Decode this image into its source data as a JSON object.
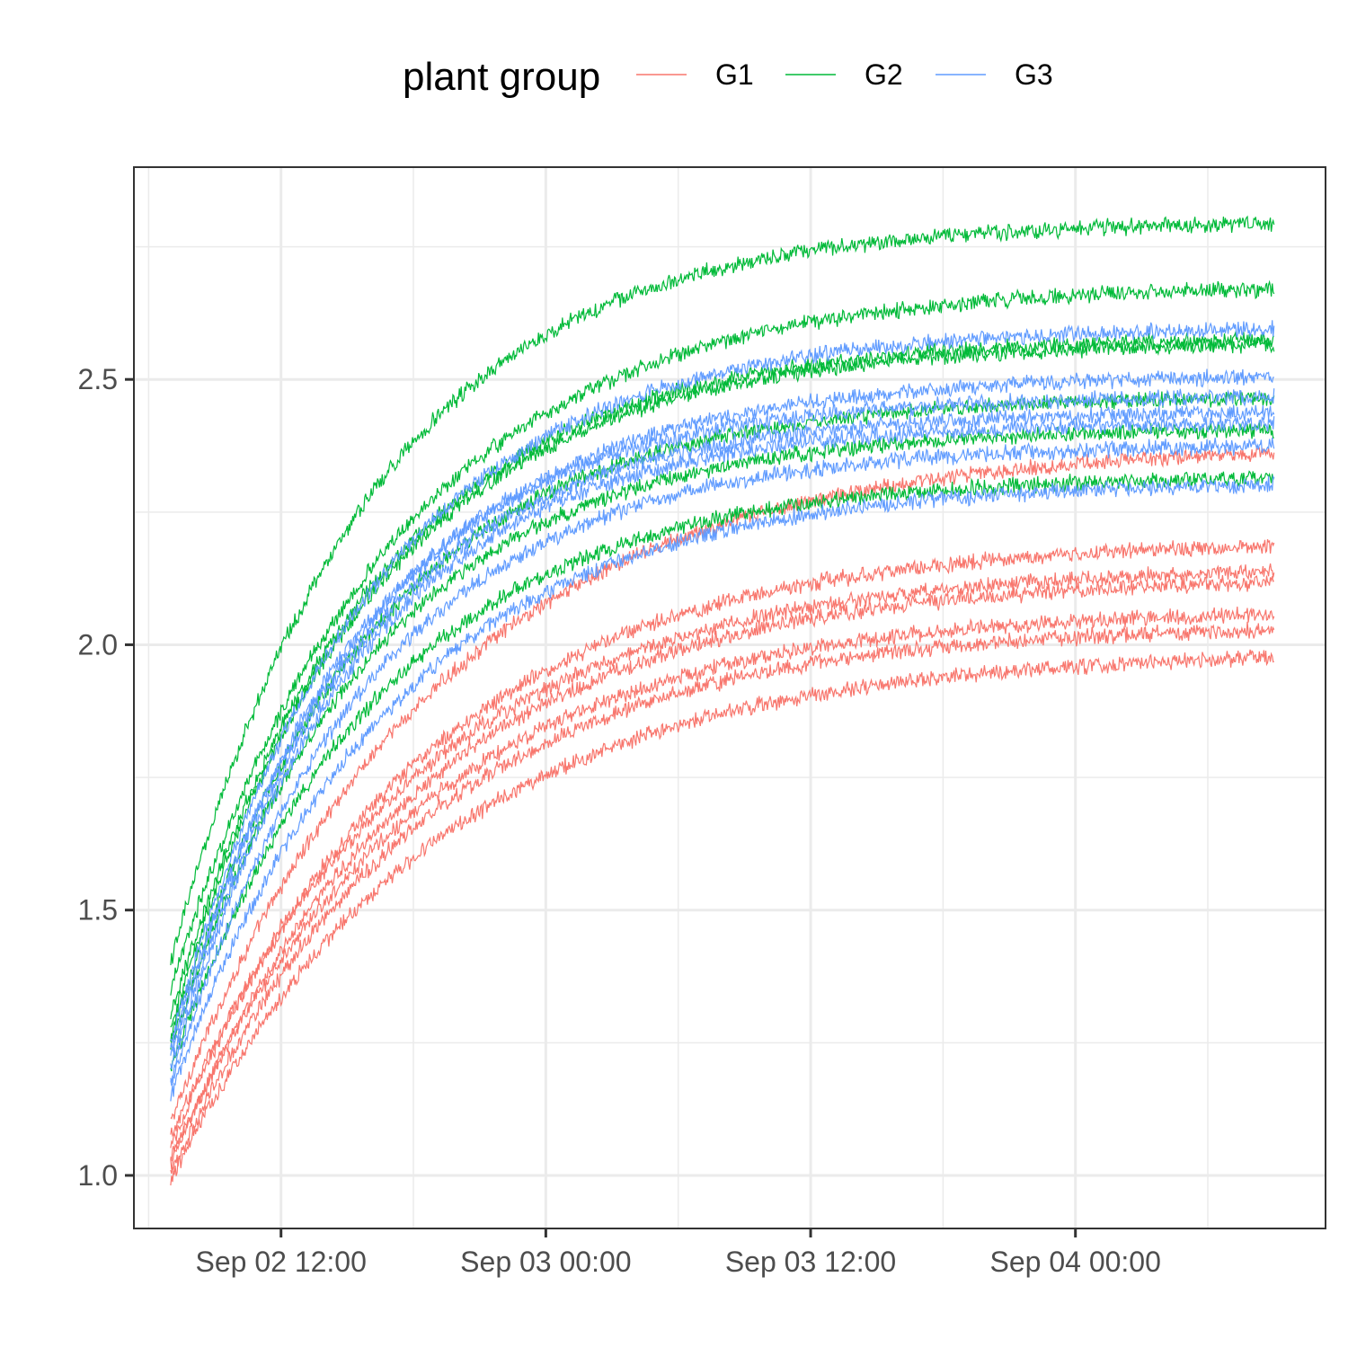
{
  "chart_data": {
    "type": "line",
    "title": "",
    "xlabel": "",
    "ylabel": "",
    "x_range": [
      "2023-09-02 07:00",
      "2023-09-04 09:00"
    ],
    "xlim": [
      "2023-09-02 05:20",
      "2023-09-04 11:20"
    ],
    "ylim": [
      0.9,
      2.9
    ],
    "x_ticks": [
      "Sep 02 12:00",
      "Sep 03 00:00",
      "Sep 03 12:00",
      "Sep 04 00:00"
    ],
    "x_tick_values": [
      "2023-09-02 12:00",
      "2023-09-03 00:00",
      "2023-09-03 12:00",
      "2023-09-04 00:00"
    ],
    "y_ticks": [
      "1.0",
      "1.5",
      "2.0",
      "2.5"
    ],
    "y_tick_values": [
      1.0,
      1.5,
      2.0,
      2.5
    ],
    "grid": true,
    "legend": {
      "title": "plant group",
      "position": "top",
      "entries": [
        {
          "label": "G1",
          "color": "#F8766D"
        },
        {
          "label": "G2",
          "color": "#00BA38"
        },
        {
          "label": "G3",
          "color": "#619CFF"
        }
      ]
    },
    "noise_amplitude": 0.012,
    "series": [
      {
        "group": "G1",
        "color": "#F8766D",
        "start": 1.1,
        "plateau": 2.38,
        "rate_per_hour": 0.085
      },
      {
        "group": "G1",
        "color": "#F8766D",
        "start": 1.05,
        "plateau": 2.2,
        "rate_per_hour": 0.09
      },
      {
        "group": "G1",
        "color": "#F8766D",
        "start": 1.07,
        "plateau": 2.15,
        "rate_per_hour": 0.09
      },
      {
        "group": "G1",
        "color": "#F8766D",
        "start": 1.02,
        "plateau": 2.13,
        "rate_per_hour": 0.09
      },
      {
        "group": "G1",
        "color": "#F8766D",
        "start": 1.03,
        "plateau": 2.07,
        "rate_per_hour": 0.09
      },
      {
        "group": "G1",
        "color": "#F8766D",
        "start": 1.0,
        "plateau": 2.04,
        "rate_per_hour": 0.09
      },
      {
        "group": "G1",
        "color": "#F8766D",
        "start": 0.99,
        "plateau": 1.99,
        "rate_per_hour": 0.085
      },
      {
        "group": "G2",
        "color": "#00BA38",
        "start": 1.4,
        "plateau": 2.8,
        "rate_per_hour": 0.11
      },
      {
        "group": "G2",
        "color": "#00BA38",
        "start": 1.35,
        "plateau": 2.68,
        "rate_per_hour": 0.1
      },
      {
        "group": "G2",
        "color": "#00BA38",
        "start": 1.3,
        "plateau": 2.58,
        "rate_per_hour": 0.11
      },
      {
        "group": "G2",
        "color": "#00BA38",
        "start": 1.28,
        "plateau": 2.57,
        "rate_per_hour": 0.11
      },
      {
        "group": "G2",
        "color": "#00BA38",
        "start": 1.26,
        "plateau": 2.47,
        "rate_per_hour": 0.11
      },
      {
        "group": "G2",
        "color": "#00BA38",
        "start": 1.24,
        "plateau": 2.41,
        "rate_per_hour": 0.11
      },
      {
        "group": "G2",
        "color": "#00BA38",
        "start": 1.2,
        "plateau": 2.32,
        "rate_per_hour": 0.105
      },
      {
        "group": "G3",
        "color": "#619CFF",
        "start": 1.25,
        "plateau": 2.6,
        "rate_per_hour": 0.11
      },
      {
        "group": "G3",
        "color": "#619CFF",
        "start": 1.24,
        "plateau": 2.51,
        "rate_per_hour": 0.11
      },
      {
        "group": "G3",
        "color": "#619CFF",
        "start": 1.22,
        "plateau": 2.47,
        "rate_per_hour": 0.12
      },
      {
        "group": "G3",
        "color": "#619CFF",
        "start": 1.2,
        "plateau": 2.44,
        "rate_per_hour": 0.12
      },
      {
        "group": "G3",
        "color": "#619CFF",
        "start": 1.18,
        "plateau": 2.42,
        "rate_per_hour": 0.12
      },
      {
        "group": "G3",
        "color": "#619CFF",
        "start": 1.17,
        "plateau": 2.38,
        "rate_per_hour": 0.11
      },
      {
        "group": "G3",
        "color": "#619CFF",
        "start": 1.15,
        "plateau": 2.31,
        "rate_per_hour": 0.1
      }
    ]
  }
}
